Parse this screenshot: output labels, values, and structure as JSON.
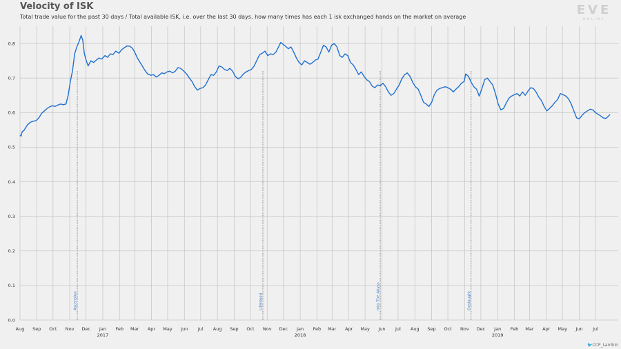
{
  "title": "Velocity of ISK",
  "subtitle": "Total trade value for the past 30 days / Total available ISK, i.e. over the last 30 days, how many times has each 1 isk exchanged hands on the market on average",
  "logo": {
    "word": "EVE",
    "tagline": "ONLINE"
  },
  "credit": "CCP_Larrikin",
  "colors": {
    "line": "#1f6fd0",
    "grid": "#c8c8c8",
    "annotation": "#6a6a6a"
  },
  "chart_data": {
    "type": "line",
    "title": "Velocity of ISK",
    "ylim": [
      0,
      0.85
    ],
    "yticks": [
      "0.0",
      "0.1",
      "0.2",
      "0.3",
      "0.4",
      "0.5",
      "0.6",
      "0.7",
      "0.8"
    ],
    "xlim": [
      "2016-08-01",
      "2019-08-12"
    ],
    "xticks": [
      {
        "date": "2016-08-01",
        "label": "Aug"
      },
      {
        "date": "2016-09-01",
        "label": "Sep"
      },
      {
        "date": "2016-10-01",
        "label": "Oct"
      },
      {
        "date": "2016-11-01",
        "label": "Nov"
      },
      {
        "date": "2016-12-01",
        "label": "Dec"
      },
      {
        "date": "2017-01-01",
        "label": "Jan",
        "year": "2017"
      },
      {
        "date": "2017-02-01",
        "label": "Feb"
      },
      {
        "date": "2017-03-01",
        "label": "Mar"
      },
      {
        "date": "2017-04-01",
        "label": "Apr"
      },
      {
        "date": "2017-05-01",
        "label": "May"
      },
      {
        "date": "2017-06-01",
        "label": "Jun"
      },
      {
        "date": "2017-07-01",
        "label": "Jul"
      },
      {
        "date": "2017-08-01",
        "label": "Aug"
      },
      {
        "date": "2017-09-01",
        "label": "Sep"
      },
      {
        "date": "2017-10-01",
        "label": "Oct"
      },
      {
        "date": "2017-11-01",
        "label": "Nov"
      },
      {
        "date": "2017-12-01",
        "label": "Dec"
      },
      {
        "date": "2018-01-01",
        "label": "Jan",
        "year": "2018"
      },
      {
        "date": "2018-02-01",
        "label": "Feb"
      },
      {
        "date": "2018-03-01",
        "label": "Mar"
      },
      {
        "date": "2018-04-01",
        "label": "Apr"
      },
      {
        "date": "2018-05-01",
        "label": "May"
      },
      {
        "date": "2018-06-01",
        "label": "Jun"
      },
      {
        "date": "2018-07-01",
        "label": "Jul"
      },
      {
        "date": "2018-08-01",
        "label": "Aug"
      },
      {
        "date": "2018-09-01",
        "label": "Sep"
      },
      {
        "date": "2018-10-01",
        "label": "Oct"
      },
      {
        "date": "2018-11-01",
        "label": "Nov"
      },
      {
        "date": "2018-12-01",
        "label": "Dec"
      },
      {
        "date": "2019-01-01",
        "label": "Jan",
        "year": "2019"
      },
      {
        "date": "2019-02-01",
        "label": "Feb"
      },
      {
        "date": "2019-03-01",
        "label": "Mar"
      },
      {
        "date": "2019-04-01",
        "label": "Apr"
      },
      {
        "date": "2019-05-01",
        "label": "May"
      },
      {
        "date": "2019-06-01",
        "label": "Jun"
      },
      {
        "date": "2019-07-01",
        "label": "Jul"
      }
    ],
    "annotations": [
      {
        "date": "2016-11-15",
        "label": "Ascension"
      },
      {
        "date": "2017-10-24",
        "label": "Lifeblood"
      },
      {
        "date": "2018-05-29",
        "label": "Into The Abyss"
      },
      {
        "date": "2018-11-13",
        "label": "Onslaught"
      }
    ],
    "grid": true,
    "series": [
      {
        "points": [
          [
            "2016-08-01",
            0.535
          ],
          [
            "2016-08-03",
            0.532
          ],
          [
            "2016-08-05",
            0.545
          ],
          [
            "2016-08-08",
            0.548
          ],
          [
            "2016-08-11",
            0.555
          ],
          [
            "2016-08-15",
            0.565
          ],
          [
            "2016-08-20",
            0.572
          ],
          [
            "2016-08-25",
            0.575
          ],
          [
            "2016-08-31",
            0.577
          ],
          [
            "2016-09-05",
            0.585
          ],
          [
            "2016-09-10",
            0.598
          ],
          [
            "2016-09-15",
            0.605
          ],
          [
            "2016-09-20",
            0.612
          ],
          [
            "2016-09-25",
            0.617
          ],
          [
            "2016-09-30",
            0.62
          ],
          [
            "2016-10-05",
            0.618
          ],
          [
            "2016-10-10",
            0.622
          ],
          [
            "2016-10-15",
            0.625
          ],
          [
            "2016-10-20",
            0.623
          ],
          [
            "2016-10-25",
            0.625
          ],
          [
            "2016-10-29",
            0.65
          ],
          [
            "2016-11-02",
            0.69
          ],
          [
            "2016-11-06",
            0.72
          ],
          [
            "2016-11-10",
            0.77
          ],
          [
            "2016-11-14",
            0.79
          ],
          [
            "2016-11-18",
            0.805
          ],
          [
            "2016-11-22",
            0.823
          ],
          [
            "2016-11-25",
            0.81
          ],
          [
            "2016-11-28",
            0.77
          ],
          [
            "2016-12-02",
            0.748
          ],
          [
            "2016-12-05",
            0.735
          ],
          [
            "2016-12-10",
            0.75
          ],
          [
            "2016-12-15",
            0.745
          ],
          [
            "2016-12-20",
            0.752
          ],
          [
            "2016-12-25",
            0.758
          ],
          [
            "2016-12-30",
            0.755
          ],
          [
            "2017-01-05",
            0.765
          ],
          [
            "2017-01-10",
            0.76
          ],
          [
            "2017-01-15",
            0.77
          ],
          [
            "2017-01-20",
            0.768
          ],
          [
            "2017-01-25",
            0.778
          ],
          [
            "2017-01-31",
            0.772
          ],
          [
            "2017-02-05",
            0.782
          ],
          [
            "2017-02-10",
            0.788
          ],
          [
            "2017-02-15",
            0.793
          ],
          [
            "2017-02-20",
            0.792
          ],
          [
            "2017-02-25",
            0.786
          ],
          [
            "2017-03-01",
            0.775
          ],
          [
            "2017-03-06",
            0.758
          ],
          [
            "2017-03-10",
            0.748
          ],
          [
            "2017-03-15",
            0.735
          ],
          [
            "2017-03-20",
            0.722
          ],
          [
            "2017-03-25",
            0.712
          ],
          [
            "2017-03-31",
            0.708
          ],
          [
            "2017-04-05",
            0.71
          ],
          [
            "2017-04-10",
            0.703
          ],
          [
            "2017-04-15",
            0.708
          ],
          [
            "2017-04-20",
            0.715
          ],
          [
            "2017-04-25",
            0.713
          ],
          [
            "2017-04-30",
            0.718
          ],
          [
            "2017-05-05",
            0.72
          ],
          [
            "2017-05-10",
            0.715
          ],
          [
            "2017-05-15",
            0.72
          ],
          [
            "2017-05-20",
            0.73
          ],
          [
            "2017-05-25",
            0.728
          ],
          [
            "2017-05-31",
            0.72
          ],
          [
            "2017-06-05",
            0.712
          ],
          [
            "2017-06-10",
            0.7
          ],
          [
            "2017-06-15",
            0.69
          ],
          [
            "2017-06-20",
            0.675
          ],
          [
            "2017-06-25",
            0.665
          ],
          [
            "2017-06-30",
            0.67
          ],
          [
            "2017-07-05",
            0.672
          ],
          [
            "2017-07-10",
            0.68
          ],
          [
            "2017-07-15",
            0.695
          ],
          [
            "2017-07-20",
            0.71
          ],
          [
            "2017-07-25",
            0.708
          ],
          [
            "2017-07-30",
            0.718
          ],
          [
            "2017-08-04",
            0.735
          ],
          [
            "2017-08-09",
            0.732
          ],
          [
            "2017-08-14",
            0.725
          ],
          [
            "2017-08-19",
            0.722
          ],
          [
            "2017-08-24",
            0.728
          ],
          [
            "2017-08-29",
            0.72
          ],
          [
            "2017-09-03",
            0.705
          ],
          [
            "2017-09-08",
            0.698
          ],
          [
            "2017-09-13",
            0.702
          ],
          [
            "2017-09-18",
            0.712
          ],
          [
            "2017-09-23",
            0.718
          ],
          [
            "2017-09-28",
            0.722
          ],
          [
            "2017-10-03",
            0.725
          ],
          [
            "2017-10-08",
            0.735
          ],
          [
            "2017-10-13",
            0.752
          ],
          [
            "2017-10-18",
            0.768
          ],
          [
            "2017-10-23",
            0.772
          ],
          [
            "2017-10-28",
            0.778
          ],
          [
            "2017-11-02",
            0.765
          ],
          [
            "2017-11-07",
            0.77
          ],
          [
            "2017-11-12",
            0.768
          ],
          [
            "2017-11-17",
            0.775
          ],
          [
            "2017-11-22",
            0.79
          ],
          [
            "2017-11-26",
            0.803
          ],
          [
            "2017-11-30",
            0.798
          ],
          [
            "2017-12-05",
            0.792
          ],
          [
            "2017-12-10",
            0.785
          ],
          [
            "2017-12-15",
            0.79
          ],
          [
            "2017-12-20",
            0.775
          ],
          [
            "2017-12-25",
            0.758
          ],
          [
            "2017-12-30",
            0.745
          ],
          [
            "2018-01-04",
            0.738
          ],
          [
            "2018-01-09",
            0.75
          ],
          [
            "2018-01-14",
            0.745
          ],
          [
            "2018-01-19",
            0.74
          ],
          [
            "2018-01-24",
            0.745
          ],
          [
            "2018-01-29",
            0.752
          ],
          [
            "2018-02-03",
            0.755
          ],
          [
            "2018-02-08",
            0.775
          ],
          [
            "2018-02-13",
            0.795
          ],
          [
            "2018-02-18",
            0.79
          ],
          [
            "2018-02-23",
            0.775
          ],
          [
            "2018-02-28",
            0.795
          ],
          [
            "2018-03-05",
            0.8
          ],
          [
            "2018-03-10",
            0.79
          ],
          [
            "2018-03-15",
            0.765
          ],
          [
            "2018-03-20",
            0.76
          ],
          [
            "2018-03-25",
            0.77
          ],
          [
            "2018-03-30",
            0.765
          ],
          [
            "2018-04-04",
            0.745
          ],
          [
            "2018-04-09",
            0.738
          ],
          [
            "2018-04-14",
            0.725
          ],
          [
            "2018-04-19",
            0.71
          ],
          [
            "2018-04-24",
            0.718
          ],
          [
            "2018-04-29",
            0.705
          ],
          [
            "2018-05-04",
            0.695
          ],
          [
            "2018-05-09",
            0.69
          ],
          [
            "2018-05-14",
            0.677
          ],
          [
            "2018-05-19",
            0.672
          ],
          [
            "2018-05-24",
            0.68
          ],
          [
            "2018-05-29",
            0.678
          ],
          [
            "2018-06-03",
            0.685
          ],
          [
            "2018-06-08",
            0.675
          ],
          [
            "2018-06-13",
            0.66
          ],
          [
            "2018-06-18",
            0.65
          ],
          [
            "2018-06-23",
            0.655
          ],
          [
            "2018-06-28",
            0.668
          ],
          [
            "2018-07-03",
            0.68
          ],
          [
            "2018-07-08",
            0.698
          ],
          [
            "2018-07-13",
            0.71
          ],
          [
            "2018-07-18",
            0.715
          ],
          [
            "2018-07-23",
            0.705
          ],
          [
            "2018-07-28",
            0.688
          ],
          [
            "2018-08-02",
            0.675
          ],
          [
            "2018-08-07",
            0.668
          ],
          [
            "2018-08-12",
            0.65
          ],
          [
            "2018-08-17",
            0.63
          ],
          [
            "2018-08-22",
            0.625
          ],
          [
            "2018-08-27",
            0.618
          ],
          [
            "2018-09-01",
            0.63
          ],
          [
            "2018-09-06",
            0.652
          ],
          [
            "2018-09-11",
            0.665
          ],
          [
            "2018-09-16",
            0.67
          ],
          [
            "2018-09-21",
            0.672
          ],
          [
            "2018-09-26",
            0.675
          ],
          [
            "2018-10-01",
            0.672
          ],
          [
            "2018-10-06",
            0.668
          ],
          [
            "2018-10-11",
            0.66
          ],
          [
            "2018-10-16",
            0.668
          ],
          [
            "2018-10-21",
            0.675
          ],
          [
            "2018-10-26",
            0.685
          ],
          [
            "2018-10-31",
            0.69
          ],
          [
            "2018-11-03",
            0.712
          ],
          [
            "2018-11-08",
            0.705
          ],
          [
            "2018-11-13",
            0.688
          ],
          [
            "2018-11-18",
            0.675
          ],
          [
            "2018-11-23",
            0.668
          ],
          [
            "2018-11-28",
            0.648
          ],
          [
            "2018-12-03",
            0.67
          ],
          [
            "2018-12-08",
            0.695
          ],
          [
            "2018-12-13",
            0.7
          ],
          [
            "2018-12-18",
            0.69
          ],
          [
            "2018-12-23",
            0.68
          ],
          [
            "2018-12-28",
            0.655
          ],
          [
            "2019-01-02",
            0.625
          ],
          [
            "2019-01-07",
            0.608
          ],
          [
            "2019-01-12",
            0.612
          ],
          [
            "2019-01-17",
            0.628
          ],
          [
            "2019-01-22",
            0.642
          ],
          [
            "2019-01-27",
            0.648
          ],
          [
            "2019-02-01",
            0.652
          ],
          [
            "2019-02-06",
            0.655
          ],
          [
            "2019-02-11",
            0.648
          ],
          [
            "2019-02-16",
            0.66
          ],
          [
            "2019-02-21",
            0.65
          ],
          [
            "2019-02-26",
            0.662
          ],
          [
            "2019-03-03",
            0.672
          ],
          [
            "2019-03-08",
            0.67
          ],
          [
            "2019-03-13",
            0.66
          ],
          [
            "2019-03-18",
            0.645
          ],
          [
            "2019-03-23",
            0.635
          ],
          [
            "2019-03-28",
            0.618
          ],
          [
            "2019-04-02",
            0.605
          ],
          [
            "2019-04-07",
            0.612
          ],
          [
            "2019-04-12",
            0.62
          ],
          [
            "2019-04-17",
            0.63
          ],
          [
            "2019-04-22",
            0.638
          ],
          [
            "2019-04-27",
            0.655
          ],
          [
            "2019-05-02",
            0.652
          ],
          [
            "2019-05-07",
            0.648
          ],
          [
            "2019-05-12",
            0.64
          ],
          [
            "2019-05-17",
            0.625
          ],
          [
            "2019-05-22",
            0.605
          ],
          [
            "2019-05-27",
            0.585
          ],
          [
            "2019-06-01",
            0.582
          ],
          [
            "2019-06-06",
            0.592
          ],
          [
            "2019-06-11",
            0.6
          ],
          [
            "2019-06-16",
            0.605
          ],
          [
            "2019-06-21",
            0.61
          ],
          [
            "2019-06-26",
            0.608
          ],
          [
            "2019-07-01",
            0.6
          ],
          [
            "2019-07-06",
            0.595
          ],
          [
            "2019-07-11",
            0.59
          ],
          [
            "2019-07-15",
            0.585
          ],
          [
            "2019-07-20",
            0.583
          ],
          [
            "2019-07-25",
            0.59
          ],
          [
            "2019-07-28",
            0.595
          ]
        ]
      }
    ]
  }
}
